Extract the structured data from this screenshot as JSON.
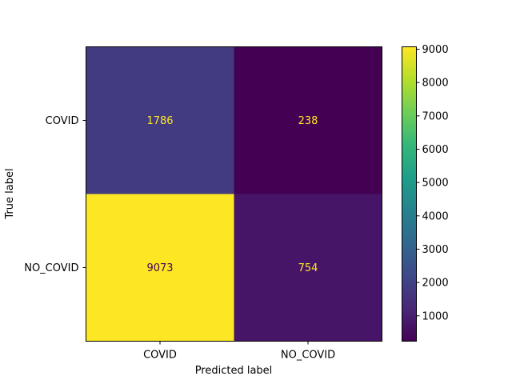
{
  "chart_data": {
    "type": "heatmap",
    "title": "",
    "xlabel": "Predicted label",
    "ylabel": "True label",
    "x_categories": [
      "COVID",
      "NO_COVID"
    ],
    "y_categories": [
      "COVID",
      "NO_COVID"
    ],
    "values": [
      [
        1786,
        238
      ],
      [
        9073,
        754
      ]
    ],
    "colormap": "viridis",
    "colorbar": {
      "vmin": 238,
      "vmax": 9073,
      "ticks": [
        1000,
        2000,
        3000,
        4000,
        5000,
        6000,
        7000,
        8000,
        9000
      ]
    },
    "text_color_dark_cells": "#fde725",
    "text_color_light_cells": "#440154",
    "grid": false
  }
}
